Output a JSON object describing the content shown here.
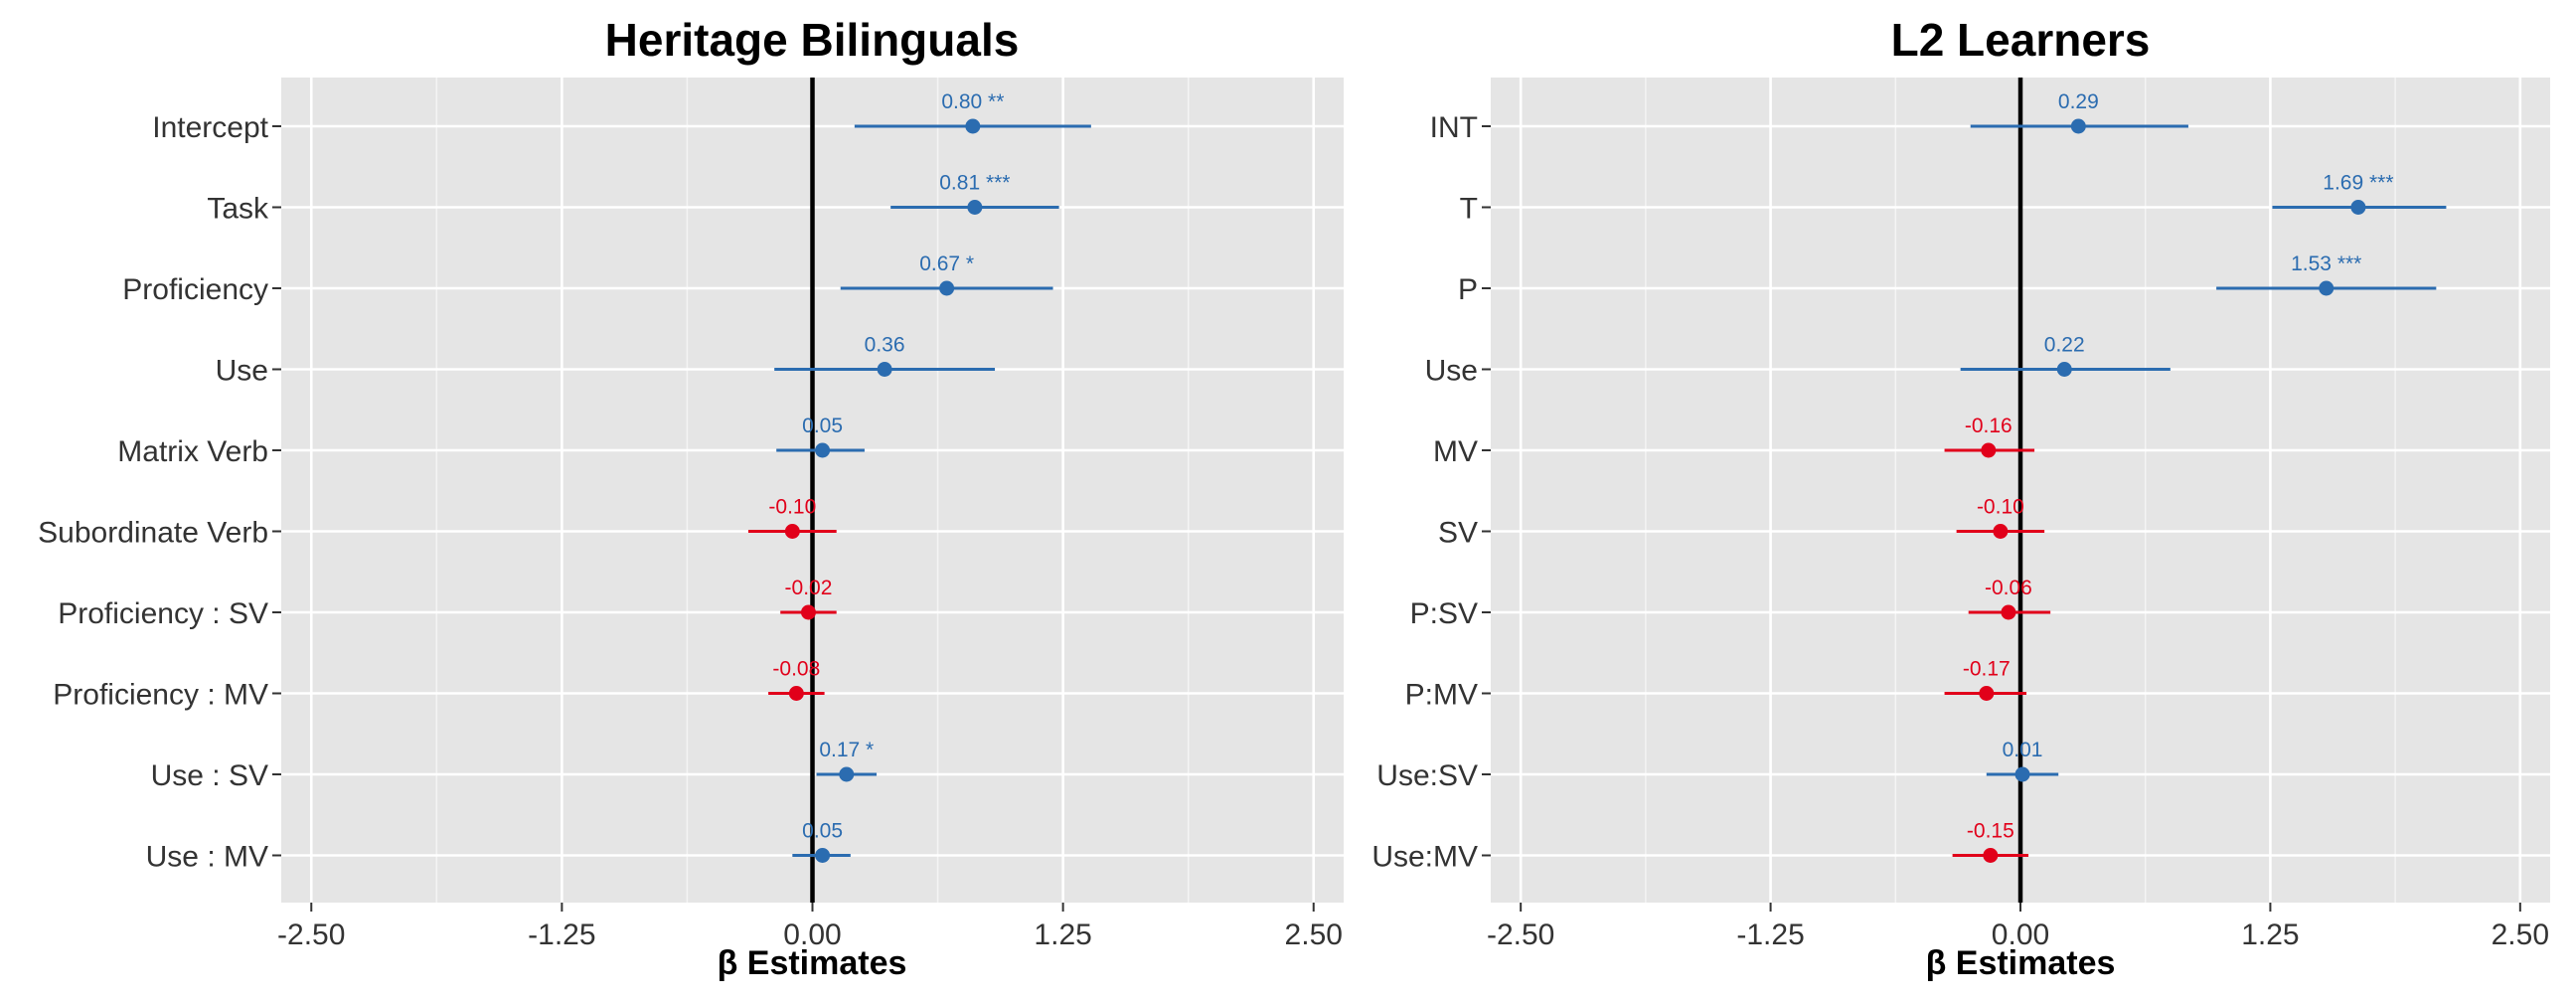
{
  "chart_data": [
    {
      "type": "forest",
      "title": "Heritage Bilinguals",
      "xlabel": "β Estimates",
      "ylabel": "",
      "xlim": [
        -2.65,
        2.65
      ],
      "x_ticks": [
        -2.5,
        -1.25,
        0,
        1.25,
        2.5
      ],
      "x_tick_labels": [
        "-2.50",
        "-1.25",
        "0.00",
        "1.25",
        "2.50"
      ],
      "reference_line": 0,
      "grid": true,
      "colors": {
        "positive": "#2b6cb0",
        "negative": "#e1001a"
      },
      "rows": [
        {
          "term": "Intercept",
          "estimate": 0.8,
          "lower": 0.21,
          "upper": 1.39,
          "label": "0.80 **"
        },
        {
          "term": "Task",
          "estimate": 0.81,
          "lower": 0.39,
          "upper": 1.23,
          "label": "0.81 ***"
        },
        {
          "term": "Proficiency",
          "estimate": 0.67,
          "lower": 0.14,
          "upper": 1.2,
          "label": "0.67 *"
        },
        {
          "term": "Use",
          "estimate": 0.36,
          "lower": -0.19,
          "upper": 0.91,
          "label": "0.36"
        },
        {
          "term": "Matrix Verb",
          "estimate": 0.05,
          "lower": -0.18,
          "upper": 0.26,
          "label": "0.05"
        },
        {
          "term": "Subordinate Verb",
          "estimate": -0.1,
          "lower": -0.32,
          "upper": 0.12,
          "label": "-0.10"
        },
        {
          "term": "Proficiency : SV",
          "estimate": -0.02,
          "lower": -0.16,
          "upper": 0.12,
          "label": "-0.02"
        },
        {
          "term": "Proficiency : MV",
          "estimate": -0.08,
          "lower": -0.22,
          "upper": 0.06,
          "label": "-0.08"
        },
        {
          "term": "Use : SV",
          "estimate": 0.17,
          "lower": 0.02,
          "upper": 0.32,
          "label": "0.17 *"
        },
        {
          "term": "Use : MV",
          "estimate": 0.05,
          "lower": -0.1,
          "upper": 0.19,
          "label": "0.05"
        }
      ]
    },
    {
      "type": "forest",
      "title": "L2 Learners",
      "xlabel": "β Estimates",
      "ylabel": "",
      "xlim": [
        -2.65,
        2.65
      ],
      "x_ticks": [
        -2.5,
        -1.25,
        0,
        1.25,
        2.5
      ],
      "x_tick_labels": [
        "-2.50",
        "-1.25",
        "0.00",
        "1.25",
        "2.50"
      ],
      "reference_line": 0,
      "grid": true,
      "colors": {
        "positive": "#2b6cb0",
        "negative": "#e1001a"
      },
      "rows": [
        {
          "term": "INT",
          "estimate": 0.29,
          "lower": -0.25,
          "upper": 0.84,
          "label": "0.29"
        },
        {
          "term": "T",
          "estimate": 1.69,
          "lower": 1.26,
          "upper": 2.13,
          "label": "1.69 ***"
        },
        {
          "term": "P",
          "estimate": 1.53,
          "lower": 0.98,
          "upper": 2.08,
          "label": "1.53 ***"
        },
        {
          "term": "Use",
          "estimate": 0.22,
          "lower": -0.3,
          "upper": 0.75,
          "label": "0.22"
        },
        {
          "term": "MV",
          "estimate": -0.16,
          "lower": -0.38,
          "upper": 0.07,
          "label": "-0.16"
        },
        {
          "term": "SV",
          "estimate": -0.1,
          "lower": -0.32,
          "upper": 0.12,
          "label": "-0.10"
        },
        {
          "term": "P:SV",
          "estimate": -0.06,
          "lower": -0.26,
          "upper": 0.15,
          "label": "-0.06"
        },
        {
          "term": "P:MV",
          "estimate": -0.17,
          "lower": -0.38,
          "upper": 0.03,
          "label": "-0.17"
        },
        {
          "term": "Use:SV",
          "estimate": 0.01,
          "lower": -0.17,
          "upper": 0.19,
          "label": "0.01"
        },
        {
          "term": "Use:MV",
          "estimate": -0.15,
          "lower": -0.34,
          "upper": 0.04,
          "label": "-0.15"
        }
      ]
    }
  ]
}
